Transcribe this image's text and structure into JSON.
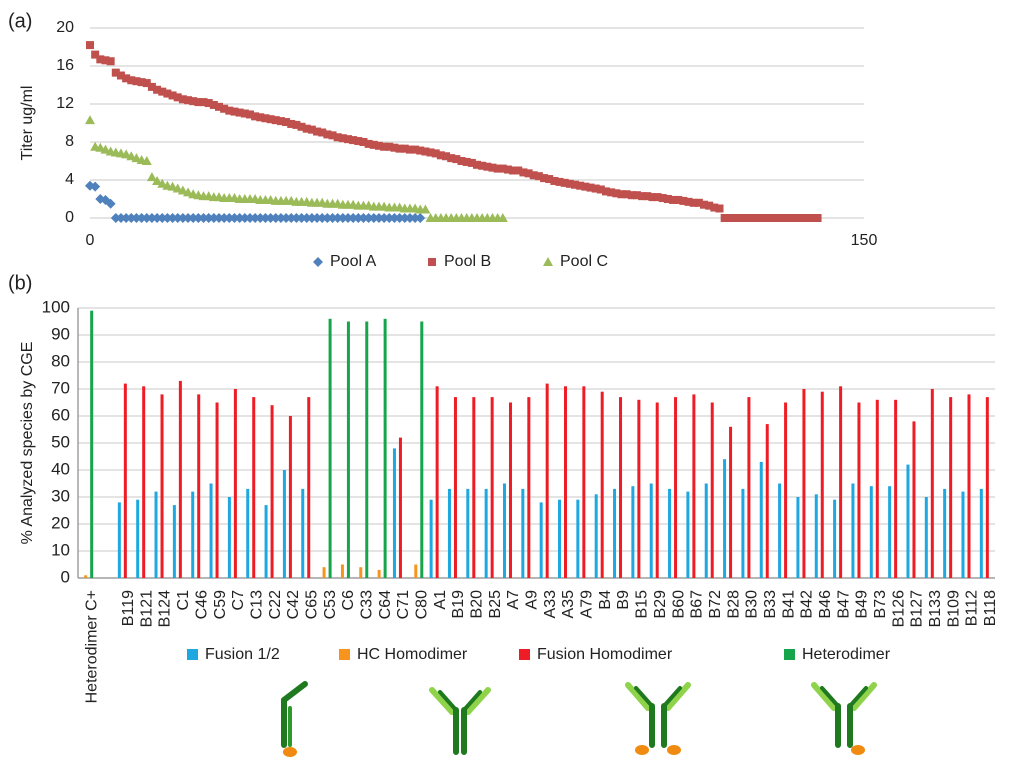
{
  "chart_data": [
    {
      "type": "scatter",
      "panel_label": "(a)",
      "y_label": "Titer ug/ml",
      "xlim": [
        0,
        150
      ],
      "xticks": [
        0,
        150
      ],
      "ylim": [
        0,
        20
      ],
      "yticks": [
        0,
        4,
        8,
        12,
        16,
        20
      ],
      "grid": true,
      "series": [
        {
          "name": "Pool A",
          "color": "#4f81bd",
          "marker": "diamond",
          "x": [
            0,
            1,
            2,
            3,
            4,
            5,
            6,
            7,
            8,
            9,
            10,
            11,
            12,
            13,
            14,
            15,
            16,
            17,
            18,
            19,
            20,
            21,
            22,
            23,
            24,
            25,
            26,
            27,
            28,
            29,
            30,
            31,
            32,
            33,
            34,
            35,
            36,
            37,
            38,
            39,
            40,
            41,
            42,
            43,
            44,
            45,
            46,
            47,
            48,
            49,
            50,
            51,
            52,
            53,
            54,
            55,
            56,
            57,
            58,
            59,
            60,
            61,
            62,
            63,
            64
          ],
          "values": [
            3.4,
            3.3,
            2.0,
            1.9,
            1.5,
            0,
            0,
            0,
            0,
            0,
            0,
            0,
            0,
            0,
            0,
            0,
            0,
            0,
            0,
            0,
            0,
            0,
            0,
            0,
            0,
            0,
            0,
            0,
            0,
            0,
            0,
            0,
            0,
            0,
            0,
            0,
            0,
            0,
            0,
            0,
            0,
            0,
            0,
            0,
            0,
            0,
            0,
            0,
            0,
            0,
            0,
            0,
            0,
            0,
            0,
            0,
            0,
            0,
            0,
            0,
            0,
            0,
            0,
            0,
            0
          ]
        },
        {
          "name": "Pool B",
          "color": "#c0504d",
          "marker": "square",
          "x": [
            0,
            1,
            2,
            3,
            4,
            5,
            6,
            7,
            8,
            9,
            10,
            11,
            12,
            13,
            14,
            15,
            16,
            17,
            18,
            19,
            20,
            21,
            22,
            23,
            24,
            25,
            26,
            27,
            28,
            29,
            30,
            31,
            32,
            33,
            34,
            35,
            36,
            37,
            38,
            39,
            40,
            41,
            42,
            43,
            44,
            45,
            46,
            47,
            48,
            49,
            50,
            51,
            52,
            53,
            54,
            55,
            56,
            57,
            58,
            59,
            60,
            61,
            62,
            63,
            64,
            65,
            66,
            67,
            68,
            69,
            70,
            71,
            72,
            73,
            74,
            75,
            76,
            77,
            78,
            79,
            80,
            81,
            82,
            83,
            84,
            85,
            86,
            87,
            88,
            89,
            90,
            91,
            92,
            93,
            94,
            95,
            96,
            97,
            98,
            99,
            100,
            101,
            102,
            103,
            104,
            105,
            106,
            107,
            108,
            109,
            110,
            111,
            112,
            113,
            114,
            115,
            116,
            117,
            118,
            119,
            120,
            121,
            122,
            123,
            124,
            125,
            126,
            127,
            128,
            129,
            130,
            131,
            132,
            133,
            134,
            135,
            136,
            137,
            138,
            139,
            140,
            141
          ],
          "values": [
            18.2,
            17.2,
            16.7,
            16.6,
            16.5,
            15.3,
            15.0,
            14.7,
            14.5,
            14.4,
            14.3,
            14.2,
            13.8,
            13.5,
            13.3,
            13.1,
            12.9,
            12.7,
            12.5,
            12.4,
            12.3,
            12.2,
            12.2,
            12.1,
            11.9,
            11.7,
            11.5,
            11.3,
            11.2,
            11.1,
            11.0,
            10.9,
            10.7,
            10.6,
            10.5,
            10.4,
            10.3,
            10.2,
            10.1,
            9.9,
            9.8,
            9.6,
            9.4,
            9.3,
            9.1,
            9.0,
            8.8,
            8.7,
            8.5,
            8.4,
            8.3,
            8.2,
            8.1,
            8.0,
            7.8,
            7.7,
            7.6,
            7.5,
            7.5,
            7.4,
            7.3,
            7.3,
            7.2,
            7.2,
            7.1,
            7.0,
            6.9,
            6.8,
            6.6,
            6.5,
            6.3,
            6.2,
            6.0,
            5.9,
            5.8,
            5.6,
            5.5,
            5.4,
            5.3,
            5.2,
            5.2,
            5.1,
            5.0,
            5.0,
            4.8,
            4.7,
            4.5,
            4.4,
            4.2,
            4.1,
            3.9,
            3.8,
            3.7,
            3.6,
            3.5,
            3.4,
            3.3,
            3.2,
            3.1,
            3.0,
            2.8,
            2.7,
            2.6,
            2.5,
            2.5,
            2.4,
            2.4,
            2.3,
            2.3,
            2.2,
            2.2,
            2.1,
            2.0,
            1.9,
            1.9,
            1.8,
            1.7,
            1.6,
            1.6,
            1.4,
            1.3,
            1.1,
            1.0,
            0,
            0,
            0,
            0,
            0,
            0,
            0,
            0,
            0,
            0,
            0,
            0,
            0,
            0,
            0,
            0,
            0,
            0,
            0
          ]
        },
        {
          "name": "Pool C",
          "color": "#9bbb59",
          "marker": "triangle",
          "x": [
            0,
            1,
            2,
            3,
            4,
            5,
            6,
            7,
            8,
            9,
            10,
            11,
            12,
            13,
            14,
            15,
            16,
            17,
            18,
            19,
            20,
            21,
            22,
            23,
            24,
            25,
            26,
            27,
            28,
            29,
            30,
            31,
            32,
            33,
            34,
            35,
            36,
            37,
            38,
            39,
            40,
            41,
            42,
            43,
            44,
            45,
            46,
            47,
            48,
            49,
            50,
            51,
            52,
            53,
            54,
            55,
            56,
            57,
            58,
            59,
            60,
            61,
            62,
            63,
            64,
            65,
            66,
            67,
            68,
            69,
            70,
            71,
            72,
            73,
            74,
            75,
            76,
            77,
            78,
            79,
            80
          ],
          "values": [
            10.3,
            7.5,
            7.4,
            7.2,
            7.0,
            6.9,
            6.8,
            6.7,
            6.5,
            6.3,
            6.1,
            6.0,
            4.3,
            3.9,
            3.6,
            3.4,
            3.3,
            3.1,
            2.9,
            2.7,
            2.5,
            2.4,
            2.3,
            2.3,
            2.2,
            2.2,
            2.1,
            2.1,
            2.1,
            2.0,
            2.0,
            2.0,
            2.0,
            1.9,
            1.9,
            1.9,
            1.8,
            1.8,
            1.8,
            1.8,
            1.7,
            1.7,
            1.7,
            1.6,
            1.6,
            1.6,
            1.5,
            1.5,
            1.5,
            1.4,
            1.4,
            1.4,
            1.3,
            1.3,
            1.3,
            1.2,
            1.2,
            1.2,
            1.1,
            1.1,
            1.1,
            1.0,
            1.0,
            1.0,
            0.9,
            0.9,
            0,
            0,
            0,
            0,
            0,
            0,
            0,
            0,
            0,
            0,
            0,
            0,
            0,
            0,
            0
          ]
        }
      ]
    },
    {
      "type": "bar",
      "panel_label": "(b)",
      "y_label": "% Analyzed species by CGE",
      "ylim": [
        0,
        100
      ],
      "yticks": [
        0,
        10,
        20,
        30,
        40,
        50,
        60,
        70,
        80,
        90,
        100
      ],
      "grid": true,
      "categories": [
        "Heterodimer C+",
        null,
        "B119",
        "B121",
        "B124",
        "C1",
        "C46",
        "C59",
        "C7",
        "C13",
        "C22",
        "C42",
        "C65",
        "C53",
        "C6",
        "C33",
        "C64",
        "C71",
        "C80",
        "A1",
        "B19",
        "B20",
        "B25",
        "A7",
        "A9",
        "A33",
        "A35",
        "A79",
        "B4",
        "B9",
        "B15",
        "B29",
        "B60",
        "B67",
        "B72",
        "B28",
        "B30",
        "B33",
        "B41",
        "B42",
        "B46",
        "B47",
        "B49",
        "B73",
        "B126",
        "B127",
        "B133",
        "B109",
        "B112",
        "B118"
      ],
      "series": [
        {
          "name": "Fusion 1/2",
          "color": "#1ea7e1",
          "values": [
            null,
            null,
            28,
            29,
            32,
            27,
            32,
            35,
            30,
            33,
            27,
            40,
            33,
            null,
            null,
            null,
            null,
            48,
            null,
            29,
            33,
            33,
            33,
            35,
            33,
            28,
            29,
            29,
            31,
            33,
            34,
            35,
            33,
            32,
            35,
            44,
            33,
            43,
            35,
            30,
            31,
            29,
            35,
            34,
            34,
            42,
            30,
            33,
            32,
            33
          ]
        },
        {
          "name": "HC Homodimer",
          "color": "#f7941d",
          "values": [
            1,
            null,
            null,
            null,
            null,
            null,
            null,
            null,
            null,
            null,
            null,
            null,
            null,
            4,
            5,
            4,
            3,
            null,
            5,
            null,
            null,
            null,
            null,
            null,
            null,
            null,
            null,
            null,
            null,
            null,
            null,
            null,
            null,
            null,
            null,
            null,
            null,
            null,
            null,
            null,
            null,
            null,
            null,
            null,
            null,
            null,
            null,
            null,
            null,
            null
          ]
        },
        {
          "name": "Fusion Homodimer",
          "color": "#ee1c25",
          "values": [
            null,
            null,
            72,
            71,
            68,
            73,
            68,
            65,
            70,
            67,
            64,
            60,
            67,
            null,
            null,
            null,
            null,
            52,
            null,
            71,
            67,
            67,
            67,
            65,
            67,
            72,
            71,
            71,
            69,
            67,
            66,
            65,
            67,
            68,
            65,
            56,
            67,
            57,
            65,
            70,
            69,
            71,
            65,
            66,
            66,
            58,
            70,
            67,
            68,
            67
          ]
        },
        {
          "name": "Heterodimer",
          "color": "#16a54b",
          "values": [
            99,
            null,
            null,
            null,
            null,
            null,
            null,
            null,
            null,
            null,
            null,
            null,
            null,
            96,
            95,
            95,
            96,
            null,
            95,
            null,
            null,
            null,
            null,
            null,
            null,
            null,
            null,
            null,
            null,
            null,
            null,
            null,
            null,
            null,
            null,
            null,
            null,
            null,
            null,
            null,
            null,
            null,
            null,
            null,
            null,
            null,
            null,
            null,
            null,
            null
          ]
        }
      ]
    }
  ]
}
